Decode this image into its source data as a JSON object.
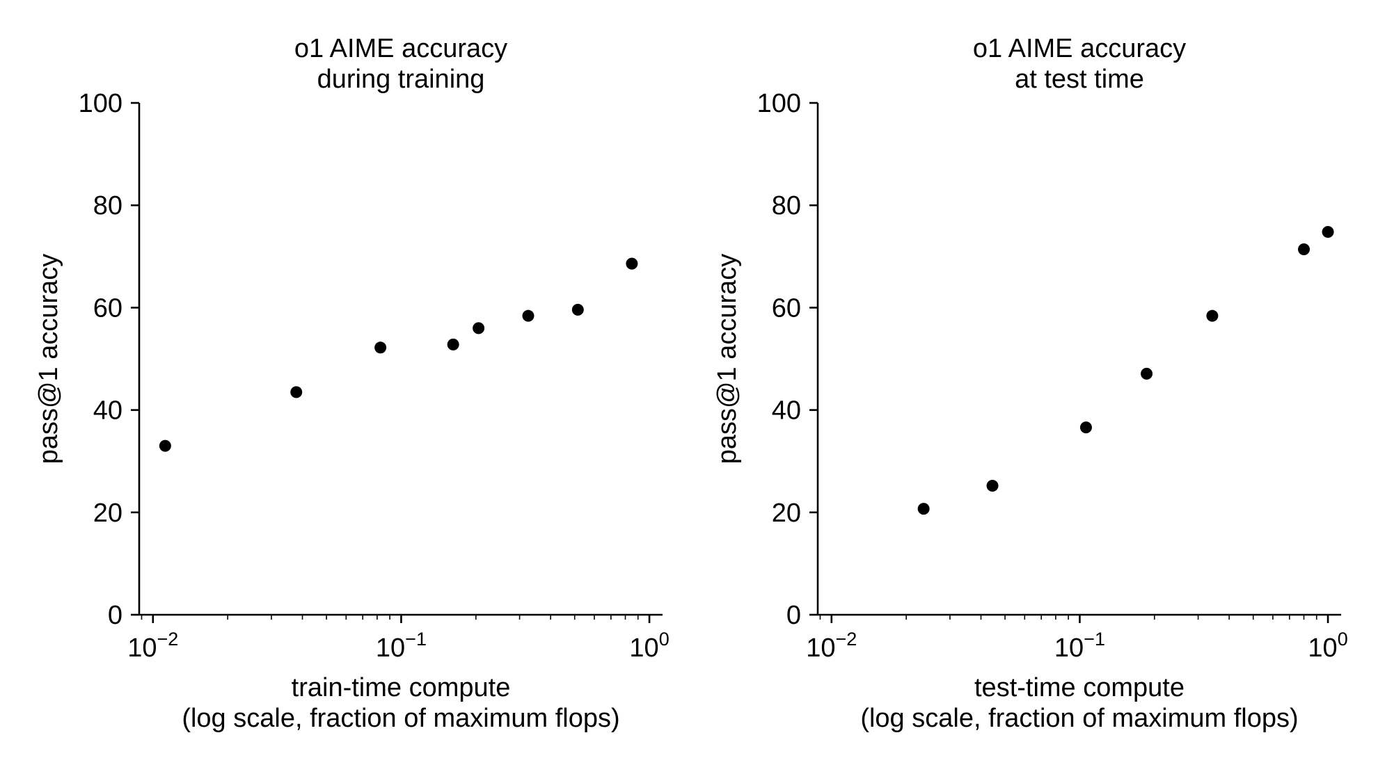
{
  "chart_data": [
    {
      "type": "scatter",
      "title_lines": [
        "o1 AIME accuracy",
        "during training"
      ],
      "xlabel_lines": [
        "train-time compute",
        "(log scale, fraction of maximum flops)"
      ],
      "ylabel": "pass@1 accuracy",
      "xscale": "log",
      "xlim": [
        0.0088,
        1.13
      ],
      "ylim": [
        0,
        100
      ],
      "xticks": [
        {
          "value": 0.01,
          "base": "10",
          "exp": "−2"
        },
        {
          "value": 0.1,
          "base": "10",
          "exp": "−1"
        },
        {
          "value": 1,
          "base": "10",
          "exp": "0"
        }
      ],
      "yticks": [
        0,
        20,
        40,
        60,
        80,
        100
      ],
      "points": [
        {
          "x": 0.0112,
          "y": 33.0
        },
        {
          "x": 0.0378,
          "y": 43.5
        },
        {
          "x": 0.0825,
          "y": 52.2
        },
        {
          "x": 0.162,
          "y": 52.8
        },
        {
          "x": 0.205,
          "y": 56.0
        },
        {
          "x": 0.325,
          "y": 58.4
        },
        {
          "x": 0.515,
          "y": 59.6
        },
        {
          "x": 0.85,
          "y": 68.6
        }
      ],
      "marker_color": "#000000"
    },
    {
      "type": "scatter",
      "title_lines": [
        "o1 AIME accuracy",
        "at test time"
      ],
      "xlabel_lines": [
        "test-time compute",
        "(log scale, fraction of maximum flops)"
      ],
      "ylabel": "pass@1 accuracy",
      "xscale": "log",
      "xlim": [
        0.0088,
        1.13
      ],
      "ylim": [
        0,
        100
      ],
      "xticks": [
        {
          "value": 0.01,
          "base": "10",
          "exp": "−2"
        },
        {
          "value": 0.1,
          "base": "10",
          "exp": "−1"
        },
        {
          "value": 1,
          "base": "10",
          "exp": "0"
        }
      ],
      "yticks": [
        0,
        20,
        40,
        60,
        80,
        100
      ],
      "points": [
        {
          "x": 0.0235,
          "y": 20.7
        },
        {
          "x": 0.0445,
          "y": 25.2
        },
        {
          "x": 0.106,
          "y": 36.6
        },
        {
          "x": 0.186,
          "y": 47.1
        },
        {
          "x": 0.342,
          "y": 58.4
        },
        {
          "x": 0.8,
          "y": 71.4
        },
        {
          "x": 1.0,
          "y": 74.8
        }
      ],
      "marker_color": "#000000"
    }
  ]
}
